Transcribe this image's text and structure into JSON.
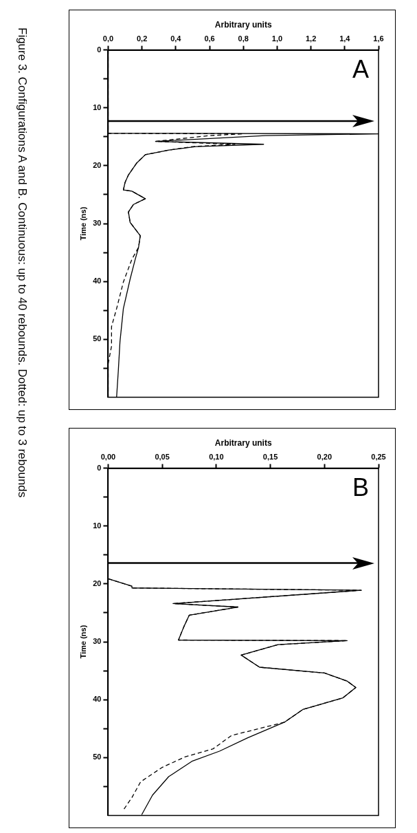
{
  "chart_data": [
    {
      "type": "line",
      "xlabel": "Arbitrary units",
      "ylabel": "Time (ns)",
      "annotations": [
        "A",
        "Figure 3. Configurations A and B. Continuous: up to 40 rebounds. Dotted: up to 3 rebounds"
      ],
      "ylim": [
        60,
        0
      ],
      "yticks": [
        0,
        {
          "value": 5,
          "label": null
        },
        10,
        {
          "value": 15,
          "label": null
        },
        20,
        {
          "value": 25,
          "label": null
        },
        30,
        {
          "value": 35,
          "label": null
        },
        40,
        {
          "value": 45,
          "label": null
        },
        50,
        {
          "value": 55,
          "label": null
        }
      ],
      "xlim": [
        0,
        1.6
      ],
      "xticks": [
        {
          "value": 0,
          "label": "0,0"
        },
        {
          "value": 0.2,
          "label": "0,2"
        },
        {
          "value": 0.4,
          "label": "0,4"
        },
        {
          "value": 0.6,
          "label": "0,6"
        },
        {
          "value": 0.8,
          "label": "0,8"
        },
        {
          "value": 1.0,
          "label": "1,0"
        },
        {
          "value": 1.2,
          "label": "1,2"
        },
        {
          "value": 1.4,
          "label": "1,4"
        },
        {
          "value": 1.6,
          "label": "1,6"
        }
      ],
      "grid": false,
      "legend": false,
      "marker": "none",
      "ref_lines": [
        {
          "axis": "y",
          "value": 12.3
        }
      ],
      "series": [
        {
          "color": "#000000",
          "line_style": "solid",
          "values": [
            0,
            14.4,
            14.5,
            14.8,
            15.8,
            16.3,
            16.7,
            17.3,
            18.1,
            19.5,
            21.6,
            22.9,
            24.2,
            24.4,
            25.7,
            26.7,
            28,
            29.8,
            32.1,
            34.1,
            36.2,
            39.6,
            44.7,
            50.4,
            55.5,
            60
          ],
          "x": [
            0,
            0,
            1.6,
            0.93,
            0.28,
            0.92,
            0.52,
            0.36,
            0.22,
            0.17,
            0.12,
            0.1,
            0.09,
            0.14,
            0.22,
            0.15,
            0.12,
            0.13,
            0.19,
            0.18,
            0.16,
            0.13,
            0.09,
            0.07,
            0.06,
            0.05
          ]
        },
        {
          "color": "#000000",
          "line_style": "dashed",
          "values": [
            0,
            14.4,
            14.5,
            14.8,
            15.8,
            16.3,
            16.7,
            17.3,
            18.1,
            19.5,
            21.6,
            22.9,
            24.2,
            24.4,
            25.7,
            26.7,
            28,
            29.8,
            32.1,
            34.1,
            36.2,
            40.1,
            44.7,
            47.8,
            51.2,
            54.2,
            60
          ],
          "x": [
            0,
            0,
            0.8,
            0.6,
            0.28,
            0.75,
            0.5,
            0.36,
            0.22,
            0.17,
            0.12,
            0.1,
            0.09,
            0.14,
            0.22,
            0.15,
            0.12,
            0.13,
            0.19,
            0.18,
            0.14,
            0.09,
            0.05,
            0.02,
            0.02,
            0,
            0
          ]
        }
      ]
    },
    {
      "type": "line",
      "xlabel": "Arbitrary units",
      "ylabel": "Time (ns)",
      "annotations": [
        "B"
      ],
      "ylim": [
        60,
        0
      ],
      "yticks": [
        0,
        {
          "value": 5,
          "label": null
        },
        10,
        {
          "value": 15,
          "label": null
        },
        20,
        {
          "value": 25,
          "label": null
        },
        30,
        {
          "value": 35,
          "label": null
        },
        40,
        {
          "value": 45,
          "label": null
        },
        50,
        {
          "value": 55,
          "label": null
        }
      ],
      "xlim": [
        0,
        0.25
      ],
      "xticks": [
        {
          "value": 0,
          "label": "0,00"
        },
        {
          "value": 0.05,
          "label": "0,05"
        },
        {
          "value": 0.1,
          "label": "0,10"
        },
        {
          "value": 0.15,
          "label": "0,15"
        },
        {
          "value": 0.2,
          "label": "0,20"
        },
        {
          "value": 0.25,
          "label": "0,25"
        }
      ],
      "grid": false,
      "legend": false,
      "marker": "none",
      "ref_lines": [
        {
          "axis": "y",
          "value": 16.4
        }
      ],
      "series": [
        {
          "color": "#000000",
          "line_style": "solid",
          "values": [
            19.1,
            20.4,
            20.7,
            21.1,
            23.4,
            24.0,
            25.4,
            27.4,
            29.7,
            29.8,
            30.5,
            32.3,
            34.4,
            35.4,
            36.8,
            37.9,
            39.7,
            41.7,
            43.9,
            46.6,
            48.9,
            50.6,
            53.3,
            56.5,
            59.9
          ],
          "x": [
            0,
            0.022,
            0.022,
            0.234,
            0.06,
            0.12,
            0.075,
            0.07,
            0.065,
            0.221,
            0.157,
            0.123,
            0.14,
            0.2,
            0.221,
            0.229,
            0.217,
            0.18,
            0.163,
            0.129,
            0.103,
            0.078,
            0.056,
            0.041,
            0.031
          ]
        },
        {
          "color": "#000000",
          "line_style": "dashed",
          "values": [
            19.1,
            20.4,
            20.7,
            21.1,
            23.4,
            24.0,
            25.4,
            27.4,
            29.7,
            29.8,
            30.5,
            32.3,
            34.4,
            35.4,
            36.8,
            37.9,
            39.7,
            41.7,
            43.9,
            46.2,
            48.5,
            49.9,
            51.7,
            54.2,
            56.9,
            59.1
          ],
          "x": [
            0,
            0.022,
            0.022,
            0.234,
            0.06,
            0.12,
            0.075,
            0.07,
            0.065,
            0.221,
            0.157,
            0.123,
            0.14,
            0.2,
            0.221,
            0.229,
            0.217,
            0.18,
            0.163,
            0.114,
            0.097,
            0.071,
            0.05,
            0.03,
            0.022,
            0.014
          ]
        }
      ]
    }
  ]
}
